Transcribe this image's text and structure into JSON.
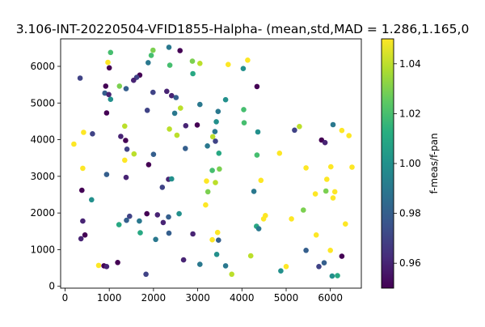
{
  "chart_data": {
    "type": "scatter",
    "title": "3.106-INT-20220504-VFID1855-Halpha- (mean,std,MAD = 1.286,1.165,0",
    "xlabel": "",
    "ylabel": "",
    "xlim": [
      -100,
      6700
    ],
    "ylim": [
      -50,
      6750
    ],
    "x_ticks": [
      0,
      1000,
      2000,
      3000,
      4000,
      5000,
      6000
    ],
    "y_ticks": [
      0,
      1000,
      2000,
      3000,
      4000,
      5000,
      6000
    ],
    "grid": false,
    "colorbar": {
      "label": "f-meas/f-pan",
      "range": [
        0.95,
        1.05
      ],
      "ticks": [
        0.96,
        0.98,
        1.0,
        1.02,
        1.04
      ],
      "tick_labels": [
        "0.96",
        "0.98",
        "1.00",
        "1.02",
        "1.04"
      ],
      "colormap": "viridis"
    },
    "points": [
      [
        2350,
        6520,
        0.99
      ],
      [
        1990,
        6440,
        1.03
      ],
      [
        1950,
        6300,
        1.02
      ],
      [
        1030,
        6380,
        1.02
      ],
      [
        2600,
        6430,
        0.95
      ],
      [
        1880,
        6100,
        0.99
      ],
      [
        2370,
        6030,
        1.02
      ],
      [
        2880,
        6140,
        1.03
      ],
      [
        3050,
        6080,
        1.04
      ],
      [
        3690,
        6050,
        1.05
      ],
      [
        4130,
        6170,
        1.05
      ],
      [
        970,
        6110,
        1.05
      ],
      [
        1000,
        5960,
        0.95
      ],
      [
        4030,
        5940,
        1.0
      ],
      [
        340,
        5680,
        0.97
      ],
      [
        1690,
        5760,
        0.95
      ],
      [
        1620,
        5700,
        0.97
      ],
      [
        1550,
        5620,
        0.96
      ],
      [
        1230,
        5460,
        1.03
      ],
      [
        920,
        5460,
        0.95
      ],
      [
        1380,
        5390,
        0.98
      ],
      [
        900,
        5270,
        0.98
      ],
      [
        990,
        5230,
        0.96
      ],
      [
        2300,
        5320,
        0.96
      ],
      [
        2890,
        5800,
        1.01
      ],
      [
        2410,
        5200,
        0.96
      ],
      [
        2510,
        5150,
        0.98
      ],
      [
        1990,
        5290,
        0.97
      ],
      [
        4340,
        5450,
        0.95
      ],
      [
        1030,
        5100,
        1.0
      ],
      [
        3050,
        4960,
        0.99
      ],
      [
        3630,
        5090,
        1.0
      ],
      [
        1860,
        4800,
        0.97
      ],
      [
        2610,
        4860,
        1.04
      ],
      [
        3460,
        4770,
        0.99
      ],
      [
        4040,
        4820,
        1.02
      ],
      [
        940,
        4730,
        0.95
      ],
      [
        2480,
        4720,
        0.99
      ],
      [
        2730,
        4380,
        0.96
      ],
      [
        3420,
        4490,
        1.0
      ],
      [
        2990,
        4400,
        0.95
      ],
      [
        4050,
        4460,
        1.02
      ],
      [
        1350,
        4370,
        1.04
      ],
      [
        2360,
        4290,
        1.04
      ],
      [
        3390,
        4220,
        0.99
      ],
      [
        4360,
        4210,
        1.0
      ],
      [
        5190,
        4260,
        0.97
      ],
      [
        5300,
        4360,
        1.04
      ],
      [
        6060,
        4410,
        0.99
      ],
      [
        6260,
        4250,
        1.05
      ],
      [
        6420,
        4110,
        1.05
      ],
      [
        420,
        4200,
        1.05
      ],
      [
        620,
        4160,
        0.97
      ],
      [
        1260,
        4090,
        0.96
      ],
      [
        1370,
        3980,
        0.95
      ],
      [
        2530,
        4120,
        1.04
      ],
      [
        3340,
        4080,
        1.04
      ],
      [
        3400,
        3960,
        0.97
      ],
      [
        3220,
        3830,
        0.99
      ],
      [
        5800,
        3990,
        0.95
      ],
      [
        5880,
        3920,
        0.96
      ],
      [
        1400,
        3740,
        0.97
      ],
      [
        1560,
        3610,
        1.04
      ],
      [
        2000,
        3600,
        0.98
      ],
      [
        2720,
        3760,
        0.98
      ],
      [
        3480,
        3630,
        1.01
      ],
      [
        4340,
        3580,
        1.02
      ],
      [
        4850,
        3630,
        1.05
      ],
      [
        200,
        3880,
        1.05
      ],
      [
        400,
        3220,
        1.05
      ],
      [
        1350,
        3440,
        1.05
      ],
      [
        1890,
        3320,
        0.95
      ],
      [
        5450,
        3230,
        1.05
      ],
      [
        3330,
        3160,
        1.02
      ],
      [
        3490,
        3200,
        1.03
      ],
      [
        6010,
        3260,
        1.05
      ],
      [
        6490,
        3250,
        1.05
      ],
      [
        940,
        3050,
        0.98
      ],
      [
        1380,
        2970,
        0.96
      ],
      [
        2340,
        2920,
        0.96
      ],
      [
        2410,
        2930,
        1.0
      ],
      [
        3200,
        2870,
        1.05
      ],
      [
        3400,
        2830,
        1.04
      ],
      [
        4430,
        2890,
        1.05
      ],
      [
        5920,
        2920,
        1.05
      ],
      [
        2200,
        2700,
        0.97
      ],
      [
        4270,
        2590,
        0.99
      ],
      [
        5660,
        2520,
        1.05
      ],
      [
        5900,
        2600,
        1.03
      ],
      [
        6100,
        2580,
        1.05
      ],
      [
        6060,
        2410,
        1.05
      ],
      [
        600,
        2360,
        1.0
      ],
      [
        380,
        2620,
        0.95
      ],
      [
        3230,
        2580,
        1.03
      ],
      [
        3180,
        2220,
        1.05
      ],
      [
        5390,
        2080,
        1.03
      ],
      [
        1460,
        1910,
        0.97
      ],
      [
        2090,
        1950,
        0.96
      ],
      [
        2340,
        1890,
        0.98
      ],
      [
        2580,
        1980,
        1.0
      ],
      [
        1850,
        1980,
        0.95
      ],
      [
        1390,
        1800,
        0.98
      ],
      [
        1680,
        1780,
        0.99
      ],
      [
        400,
        1780,
        0.96
      ],
      [
        4530,
        1930,
        1.05
      ],
      [
        4490,
        1840,
        1.05
      ],
      [
        5120,
        1840,
        1.05
      ],
      [
        1220,
        1680,
        1.01
      ],
      [
        2220,
        1740,
        0.96
      ],
      [
        6340,
        1700,
        1.05
      ],
      [
        4330,
        1640,
        1.01
      ],
      [
        4380,
        1570,
        0.99
      ],
      [
        1700,
        1460,
        1.01
      ],
      [
        2350,
        1450,
        0.98
      ],
      [
        2890,
        1430,
        0.96
      ],
      [
        3450,
        1470,
        1.05
      ],
      [
        5680,
        1400,
        1.05
      ],
      [
        450,
        1400,
        0.95
      ],
      [
        360,
        1300,
        0.96
      ],
      [
        2050,
        1280,
        0.99
      ],
      [
        3330,
        1270,
        1.05
      ],
      [
        3470,
        1260,
        0.98
      ],
      [
        5450,
        980,
        0.98
      ],
      [
        6000,
        980,
        1.05
      ],
      [
        4200,
        830,
        1.04
      ],
      [
        3430,
        870,
        1.0
      ],
      [
        6260,
        820,
        0.95
      ],
      [
        2680,
        720,
        0.96
      ],
      [
        3050,
        600,
        0.99
      ],
      [
        3630,
        560,
        0.99
      ],
      [
        1190,
        650,
        0.95
      ],
      [
        760,
        570,
        1.05
      ],
      [
        880,
        560,
        0.95
      ],
      [
        940,
        540,
        0.96
      ],
      [
        5000,
        540,
        1.05
      ],
      [
        5740,
        540,
        0.97
      ],
      [
        5860,
        640,
        0.98
      ],
      [
        4880,
        420,
        1.0
      ],
      [
        1830,
        330,
        0.97
      ],
      [
        3770,
        330,
        1.04
      ],
      [
        6040,
        280,
        1.0
      ],
      [
        6160,
        290,
        1.01
      ]
    ]
  }
}
